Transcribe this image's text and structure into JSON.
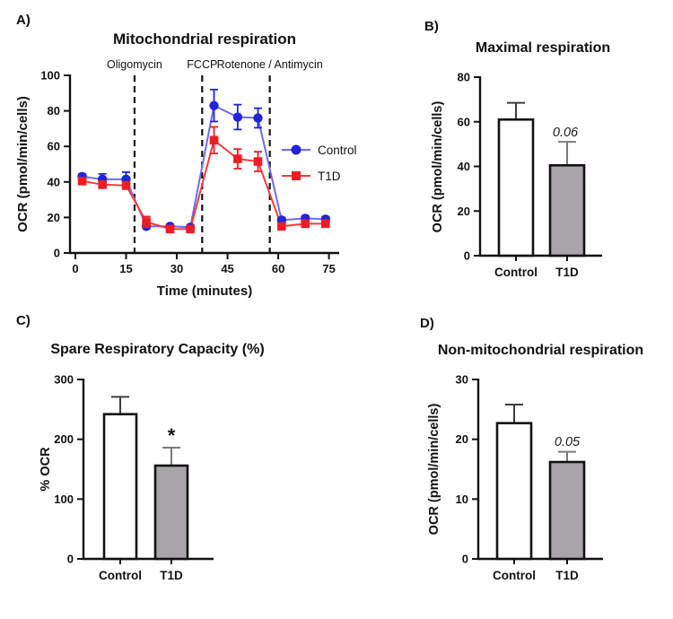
{
  "panels": {
    "a_label": "A)",
    "b_label": "B)",
    "c_label": "C)",
    "d_label": "D)"
  },
  "groups": [
    "Control",
    "T1D"
  ],
  "colors": {
    "control_marker": "#2323d9",
    "control_line": "#6d6df0",
    "t1d_marker": "#ee1c25",
    "t1d_line": "#f23d3d",
    "bar_white": "#ffffff",
    "bar_gray": "#a7a5a8",
    "bar_outline": "#111111",
    "axis": "#111111"
  },
  "chart_data": [
    {
      "id": "A",
      "type": "line",
      "title": "Mitochondrial respiration",
      "xlabel": "Time (minutes)",
      "ylabel": "OCR (pmol/min/cells)",
      "xlim": [
        0,
        78
      ],
      "ylim": [
        0,
        100
      ],
      "xticks": [
        0,
        15,
        30,
        45,
        60,
        75
      ],
      "yticks": [
        0,
        20,
        40,
        60,
        80,
        100
      ],
      "grid": false,
      "legend_position": "right-middle",
      "x": [
        2,
        8,
        15,
        21,
        28,
        34,
        41,
        48,
        54,
        61,
        68,
        74
      ],
      "series": [
        {
          "name": "Control",
          "marker": "circle",
          "marker_color": "#2323d9",
          "line_color": "#6d6df0",
          "values": [
            43,
            41.5,
            41.5,
            15,
            15,
            14.5,
            83,
            76.5,
            76,
            18.5,
            19.5,
            19
          ],
          "errors": [
            1.5,
            3,
            4,
            1,
            1,
            1,
            9,
            7,
            5.5,
            1.5,
            1.5,
            1.5
          ]
        },
        {
          "name": "T1D",
          "marker": "square",
          "marker_color": "#ee1c25",
          "line_color": "#f23d3d",
          "values": [
            40.5,
            38.5,
            38,
            17.5,
            13.5,
            13.5,
            63.5,
            53,
            51.5,
            15,
            16.5,
            16.5
          ],
          "errors": [
            1.5,
            2,
            2,
            3,
            1,
            1,
            7.5,
            5.5,
            5.5,
            1,
            1,
            1
          ]
        }
      ],
      "vlines": [
        {
          "x": 17.5,
          "label": "Oligomycin"
        },
        {
          "x": 37.5,
          "label": "FCCP"
        },
        {
          "x": 57.5,
          "label": "Rotenone / Antimycin"
        }
      ]
    },
    {
      "id": "B",
      "type": "bar",
      "title": "Maximal respiration",
      "xlabel": "",
      "ylabel": "OCR (pmol/min/cells)",
      "ylim": [
        0,
        80
      ],
      "yticks": [
        0,
        20,
        40,
        60,
        80
      ],
      "categories": [
        "Control",
        "T1D"
      ],
      "values": [
        61,
        40.5
      ],
      "errors": [
        7.5,
        10.5
      ],
      "bar_fills": [
        "#ffffff",
        "#a7a5a8"
      ],
      "bar_outline": "#111111",
      "error_colors": [
        "#3d3d3d",
        "#7a7a7a"
      ],
      "annotation": {
        "text": "0.06",
        "target": "T1D",
        "style": "pvalue"
      }
    },
    {
      "id": "C",
      "type": "bar",
      "title": "Spare Respiratory Capacity (%)",
      "xlabel": "",
      "ylabel": "% OCR",
      "ylim": [
        0,
        300
      ],
      "yticks": [
        0,
        100,
        200,
        300
      ],
      "categories": [
        "Control",
        "T1D"
      ],
      "values": [
        242,
        156
      ],
      "errors": [
        29,
        30
      ],
      "bar_fills": [
        "#ffffff",
        "#a7a5a8"
      ],
      "bar_outline": "#111111",
      "error_colors": [
        "#3d3d3d",
        "#7a7a7a"
      ],
      "annotation": {
        "text": "*",
        "target": "T1D",
        "style": "star"
      }
    },
    {
      "id": "D",
      "type": "bar",
      "title": "Non-mitochondrial respiration",
      "xlabel": "",
      "ylabel": "OCR (pmol/min/cells)",
      "ylim": [
        0,
        30
      ],
      "yticks": [
        0,
        10,
        20,
        30
      ],
      "categories": [
        "Control",
        "T1D"
      ],
      "values": [
        22.7,
        16.2
      ],
      "errors": [
        3.1,
        1.7
      ],
      "bar_fills": [
        "#ffffff",
        "#a7a5a8"
      ],
      "bar_outline": "#111111",
      "error_colors": [
        "#3d3d3d",
        "#7a7a7a"
      ],
      "annotation": {
        "text": "0.05",
        "target": "T1D",
        "style": "pvalue"
      }
    }
  ]
}
